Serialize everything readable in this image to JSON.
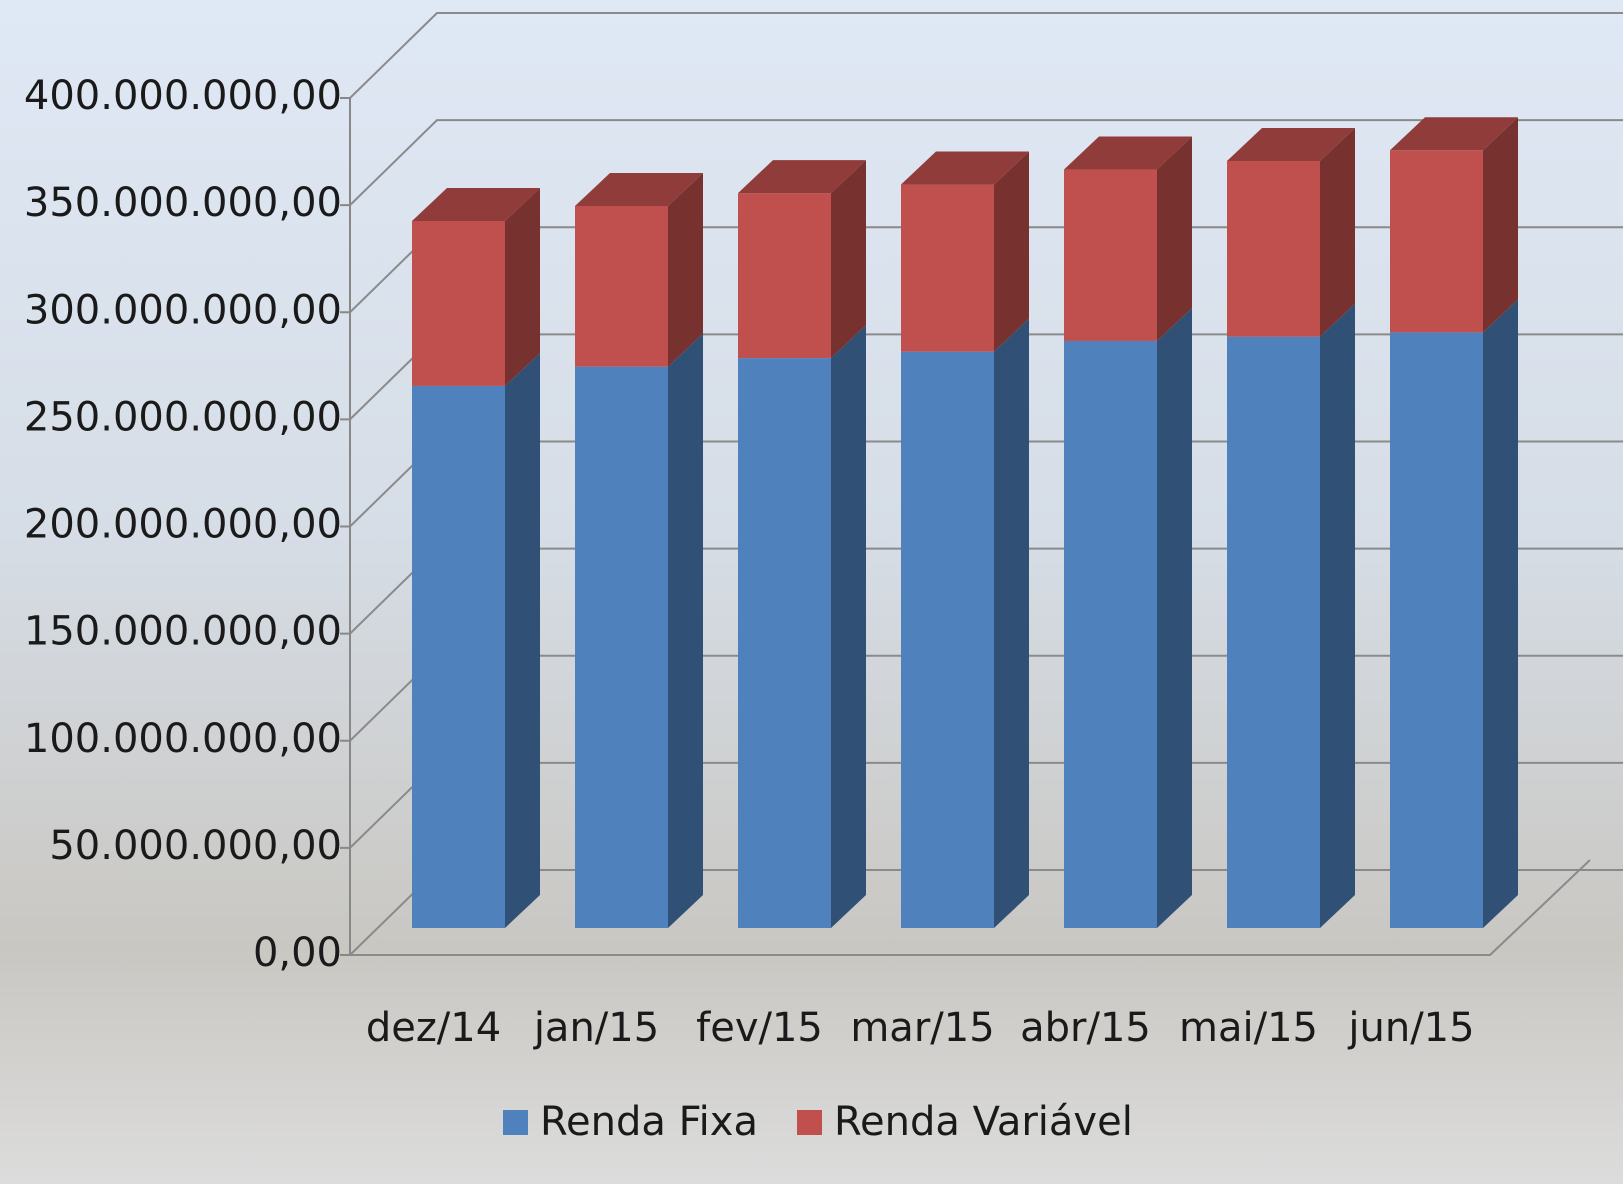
{
  "chart_data": {
    "type": "bar3d_stacked",
    "categories": [
      "dez/14",
      "jan/15",
      "fev/15",
      "mar/15",
      "abr/15",
      "mai/15",
      "jun/15"
    ],
    "series": [
      {
        "name": "Renda Fixa",
        "color": "#4f81bd",
        "values": [
          253000000,
          262000000,
          266000000,
          269000000,
          274000000,
          276000000,
          278000000
        ]
      },
      {
        "name": "Renda Variável",
        "color": "#c0504d",
        "values": [
          77000000,
          75000000,
          77000000,
          78000000,
          80000000,
          82000000,
          85000000
        ]
      }
    ],
    "ylim": [
      0,
      400000000
    ],
    "yticks": [
      {
        "value": 0,
        "label": "0,00"
      },
      {
        "value": 50000000,
        "label": "50.000.000,00"
      },
      {
        "value": 100000000,
        "label": "100.000.000,00"
      },
      {
        "value": 150000000,
        "label": "150.000.000,00"
      },
      {
        "value": 200000000,
        "label": "200.000.000,00"
      },
      {
        "value": 250000000,
        "label": "250.000.000,00"
      },
      {
        "value": 300000000,
        "label": "300.000.000,00"
      },
      {
        "value": 350000000,
        "label": "350.000.000,00"
      },
      {
        "value": 400000000,
        "label": "400.000.000,00"
      }
    ],
    "grid": true,
    "legend": "bottom"
  }
}
